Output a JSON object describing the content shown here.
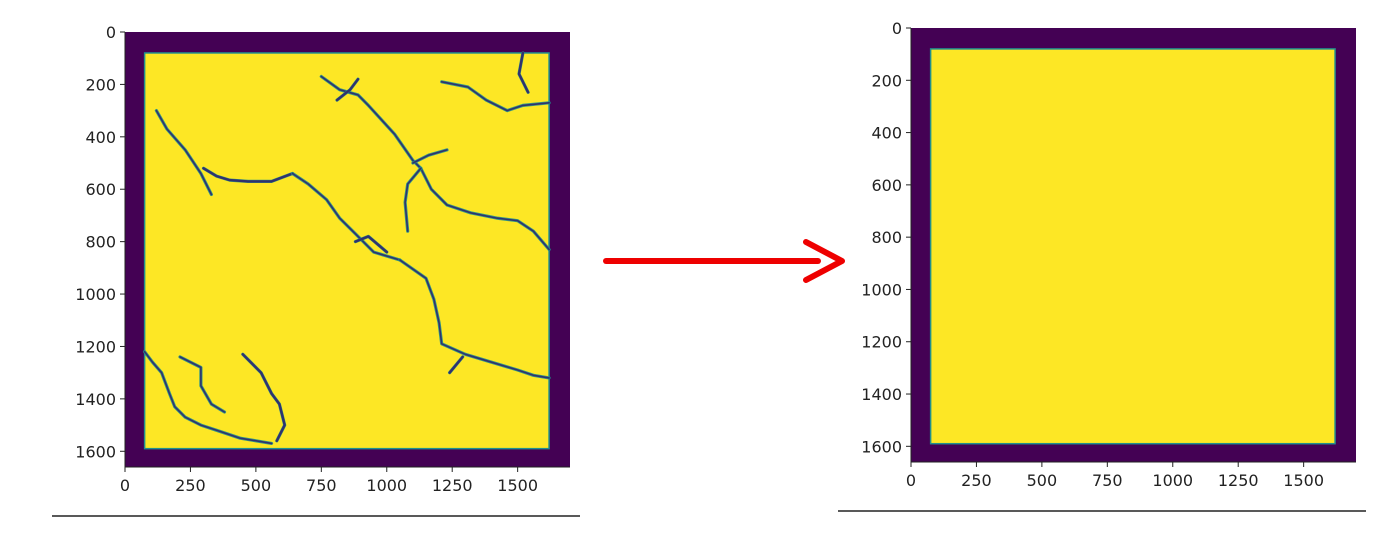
{
  "colors": {
    "background": "#440154",
    "foreground": "#fde725",
    "edge": "#21908d",
    "crack": "#31316e",
    "arrow": "#ee0000",
    "axis": "#222222"
  },
  "chart_data": [
    {
      "type": "heatmap",
      "colormap": "viridis",
      "content": "binary mask with crack lines",
      "xlim": [
        0,
        1700
      ],
      "ylim": [
        1660,
        0
      ],
      "xticks": [
        "0",
        "250",
        "500",
        "750",
        "1000",
        "1250",
        "1500"
      ],
      "yticks": [
        "0",
        "200",
        "400",
        "600",
        "800",
        "1000",
        "1200",
        "1400",
        "1600"
      ],
      "mask_extent": {
        "x": [
          75,
          1620
        ],
        "y": [
          80,
          1590
        ]
      },
      "cracks": [
        [
          [
            1520,
            80
          ],
          [
            1505,
            160
          ],
          [
            1540,
            230
          ]
        ],
        [
          [
            1210,
            190
          ],
          [
            1310,
            210
          ],
          [
            1380,
            260
          ],
          [
            1460,
            300
          ],
          [
            1520,
            280
          ],
          [
            1620,
            270
          ]
        ],
        [
          [
            750,
            170
          ],
          [
            820,
            220
          ],
          [
            890,
            240
          ],
          [
            930,
            280
          ],
          [
            1030,
            390
          ],
          [
            1100,
            490
          ],
          [
            1130,
            520
          ]
        ],
        [
          [
            810,
            260
          ],
          [
            860,
            220
          ],
          [
            890,
            180
          ]
        ],
        [
          [
            1130,
            520
          ],
          [
            1170,
            600
          ],
          [
            1230,
            660
          ],
          [
            1320,
            690
          ],
          [
            1420,
            710
          ],
          [
            1500,
            720
          ],
          [
            1560,
            760
          ],
          [
            1620,
            830
          ]
        ],
        [
          [
            1130,
            520
          ],
          [
            1080,
            580
          ],
          [
            1070,
            650
          ],
          [
            1080,
            760
          ]
        ],
        [
          [
            300,
            520
          ],
          [
            350,
            550
          ],
          [
            400,
            565
          ],
          [
            470,
            570
          ],
          [
            560,
            570
          ],
          [
            640,
            540
          ]
        ],
        [
          [
            640,
            540
          ],
          [
            700,
            580
          ],
          [
            770,
            640
          ],
          [
            820,
            710
          ],
          [
            880,
            770
          ],
          [
            950,
            840
          ],
          [
            1050,
            870
          ]
        ],
        [
          [
            1050,
            870
          ],
          [
            1150,
            940
          ],
          [
            1180,
            1020
          ],
          [
            1200,
            1110
          ],
          [
            1210,
            1190
          ],
          [
            1300,
            1230
          ],
          [
            1400,
            1260
          ],
          [
            1500,
            1290
          ],
          [
            1560,
            1310
          ],
          [
            1620,
            1320
          ]
        ],
        [
          [
            1240,
            1300
          ],
          [
            1290,
            1240
          ]
        ],
        [
          [
            75,
            1220
          ],
          [
            105,
            1260
          ],
          [
            140,
            1300
          ],
          [
            170,
            1380
          ],
          [
            190,
            1430
          ],
          [
            230,
            1470
          ],
          [
            290,
            1500
          ],
          [
            350,
            1520
          ],
          [
            440,
            1550
          ],
          [
            560,
            1570
          ]
        ],
        [
          [
            210,
            1240
          ],
          [
            290,
            1280
          ],
          [
            290,
            1350
          ],
          [
            330,
            1420
          ],
          [
            380,
            1450
          ]
        ],
        [
          [
            450,
            1230
          ],
          [
            520,
            1300
          ],
          [
            560,
            1380
          ],
          [
            590,
            1420
          ],
          [
            610,
            1500
          ],
          [
            580,
            1560
          ]
        ],
        [
          [
            120,
            300
          ],
          [
            160,
            370
          ],
          [
            230,
            450
          ],
          [
            290,
            540
          ],
          [
            330,
            620
          ]
        ],
        [
          [
            1100,
            500
          ],
          [
            1160,
            470
          ],
          [
            1230,
            450
          ]
        ],
        [
          [
            880,
            800
          ],
          [
            930,
            780
          ],
          [
            1000,
            840
          ]
        ]
      ]
    },
    {
      "type": "heatmap",
      "colormap": "viridis",
      "content": "filled mask",
      "xlim": [
        0,
        1700
      ],
      "ylim": [
        1660,
        0
      ],
      "xticks": [
        "0",
        "250",
        "500",
        "750",
        "1000",
        "1250",
        "1500"
      ],
      "yticks": [
        "0",
        "200",
        "400",
        "600",
        "800",
        "1000",
        "1200",
        "1400",
        "1600"
      ],
      "mask_extent": {
        "x": [
          75,
          1620
        ],
        "y": [
          80,
          1590
        ]
      }
    }
  ],
  "arrow": {
    "color": "#ee0000"
  }
}
